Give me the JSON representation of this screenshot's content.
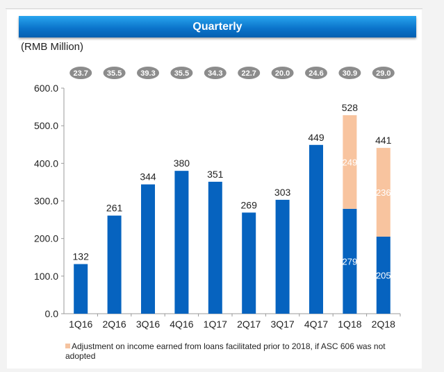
{
  "chart_data": {
    "type": "bar",
    "title": "Quarterly",
    "ylabel": "(RMB Million)",
    "xlabel": "",
    "ylim": [
      0,
      600
    ],
    "yticks": [
      "0.0",
      "100.0",
      "200.0",
      "300.0",
      "400.0",
      "500.0",
      "600.0"
    ],
    "categories": [
      "1Q16",
      "2Q16",
      "3Q16",
      "4Q16",
      "1Q17",
      "2Q17",
      "3Q17",
      "4Q17",
      "1Q18",
      "2Q18"
    ],
    "series": [
      {
        "values": [
          132,
          261,
          344,
          380,
          351,
          269,
          303,
          449,
          279,
          205
        ],
        "color": "#0663bf"
      },
      {
        "name": "Adjustment on income earned from loans facilitated prior to 2018, if ASC 606 was not adopted",
        "values": [
          null,
          null,
          null,
          null,
          null,
          null,
          null,
          null,
          249,
          236
        ],
        "color": "#f8c49f"
      }
    ],
    "totals": [
      132,
      261,
      344,
      380,
      351,
      269,
      303,
      449,
      528,
      441
    ],
    "pill_values": [
      "23.7",
      "35.5",
      "39.3",
      "35.5",
      "34.3",
      "22.7",
      "20.0",
      "24.6",
      "30.9",
      "29.0"
    ],
    "pill_color": "#8c8c8c",
    "grid": false,
    "legend_position": "bottom-left"
  }
}
